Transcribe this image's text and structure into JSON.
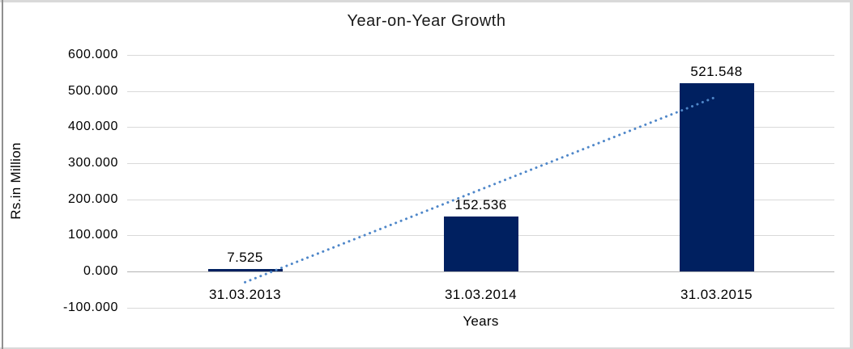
{
  "chart_data": {
    "type": "bar",
    "title": "Year-on-Year Growth",
    "xlabel": "Years",
    "ylabel": "Rs.in Million",
    "categories": [
      "31.03.2013",
      "31.03.2014",
      "31.03.2015"
    ],
    "values": [
      7.525,
      152.536,
      521.548
    ],
    "data_labels": [
      "7.525",
      "152.536",
      "521.548"
    ],
    "ylim": [
      -100,
      600
    ],
    "ytick_step": 100,
    "ytick_labels": [
      "600.000",
      "500.000",
      "400.000",
      "300.000",
      "200.000",
      "100.000",
      "0.000",
      "-100.000"
    ],
    "grid": true,
    "legend": false,
    "trendline": {
      "type": "linear",
      "style": "dotted"
    },
    "colors": {
      "bar": "#002060",
      "trendline": "#4f87c9",
      "gridline": "#d9d9d9",
      "zero_axis": "#b3b3b3",
      "text": "#000000",
      "background": "#ffffff",
      "frame": "#d9d9d9"
    }
  }
}
